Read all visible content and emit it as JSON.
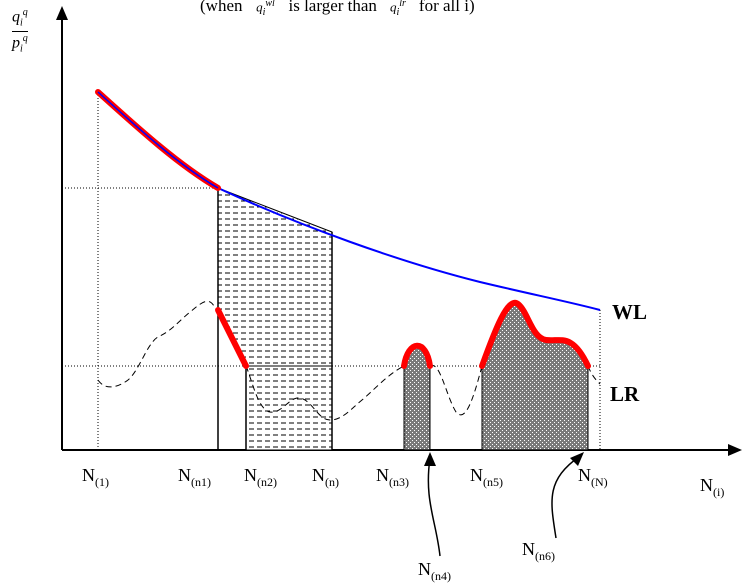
{
  "condition": {
    "prefix": "(when",
    "frac1_num": "",
    "frac1_den_base": "q",
    "frac1_den_sub": "i",
    "frac1_den_sup": "wl",
    "middle": "is larger than",
    "frac2_num": "",
    "frac2_den_base": "q",
    "frac2_den_sub": "i",
    "frac2_den_sup": "lr",
    "suffix": "for all i)"
  },
  "y_axis_label": {
    "num_base": "q",
    "num_sub": "i",
    "num_sup": "q",
    "den_base": "p",
    "den_sub": "i",
    "den_sup": "q"
  },
  "curve_labels": {
    "wl": "WL",
    "lr": "LR"
  },
  "x_labels": [
    {
      "base": "N",
      "sub": "(1)"
    },
    {
      "base": "N",
      "sub": "(n1)"
    },
    {
      "base": "N",
      "sub": "(n2)"
    },
    {
      "base": "N",
      "sub": "(n)"
    },
    {
      "base": "N",
      "sub": "(n3)"
    },
    {
      "base": "N",
      "sub": "(n5)"
    },
    {
      "base": "N",
      "sub": "(N)"
    },
    {
      "base": "N",
      "sub": "(i)"
    }
  ],
  "arrow_labels": [
    {
      "base": "N",
      "sub": "(n4)"
    },
    {
      "base": "N",
      "sub": "(n6)"
    }
  ],
  "colors": {
    "wl_curve": "#0000ff",
    "highlight": "#ff0000",
    "axis": "#000000",
    "shaded_fill": "#808080"
  }
}
